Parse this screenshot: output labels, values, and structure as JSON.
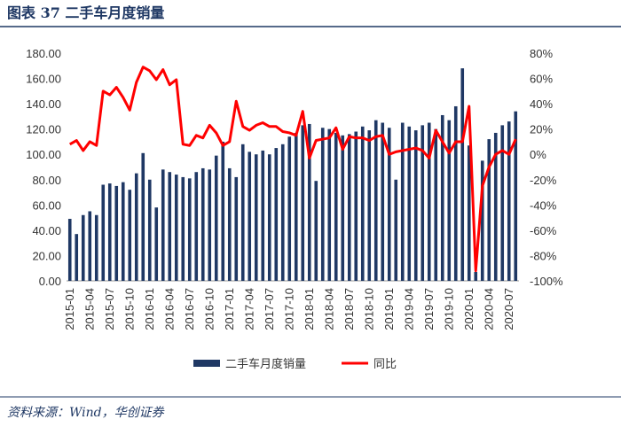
{
  "chart_data": {
    "type": "bar_line",
    "title": "图表 37 二手车月度销量",
    "source": "资料来源：Wind，华创证券",
    "categories": [
      "2015-01",
      null,
      null,
      "2015-04",
      null,
      null,
      "2015-07",
      null,
      null,
      "2015-10",
      null,
      null,
      "2016-01",
      null,
      null,
      "2016-04",
      null,
      null,
      "2016-07",
      null,
      null,
      "2016-10",
      null,
      null,
      "2017-01",
      null,
      null,
      "2017-04",
      null,
      null,
      "2017-07",
      null,
      null,
      "2017-10",
      null,
      null,
      "2018-01",
      null,
      null,
      "2018-04",
      null,
      null,
      "2018-07",
      null,
      null,
      "2018-10",
      null,
      null,
      "2019-01",
      null,
      null,
      "2019-04",
      null,
      null,
      "2019-07",
      null,
      null,
      "2019-10",
      null,
      null,
      "2020-01",
      null,
      null,
      "2020-04",
      null,
      null,
      "2020-07",
      null
    ],
    "series": [
      {
        "name": "二手车月度销量",
        "color": "#1f3864",
        "kind": "bar",
        "values": [
          49,
          37,
          52,
          55,
          52,
          76,
          77,
          75,
          78,
          72,
          85,
          101,
          80,
          58,
          88,
          86,
          84,
          82,
          81,
          86,
          89,
          88,
          99,
          110,
          89,
          82,
          108,
          102,
          100,
          103,
          100,
          105,
          108,
          114,
          117,
          123,
          124,
          79,
          121,
          120,
          117,
          115,
          116,
          118,
          122,
          119,
          127,
          125,
          121,
          80,
          125,
          122,
          119,
          123,
          125,
          120,
          131,
          127,
          138,
          168,
          107,
          7,
          95,
          112,
          117,
          123,
          126,
          134
        ]
      },
      {
        "name": "同比",
        "color": "#ff0000",
        "kind": "line",
        "axis": "y2",
        "values": [
          8,
          11,
          3,
          10,
          7,
          50,
          47,
          53,
          45,
          35,
          57,
          69,
          66,
          59,
          67,
          55,
          59,
          8,
          7,
          15,
          13,
          23,
          17,
          7,
          10,
          42,
          22,
          19,
          23,
          25,
          22,
          22,
          18,
          17,
          15,
          34,
          -3,
          11,
          12,
          13,
          21,
          4,
          14,
          13,
          13,
          11,
          14,
          15,
          0,
          2,
          3,
          4,
          5,
          3,
          -3,
          19,
          10,
          1,
          10,
          10,
          38,
          -92,
          -25,
          -10,
          0,
          3,
          0,
          12
        ]
      }
    ],
    "ylim": [
      0,
      180
    ],
    "yticks": [
      {
        "value": 0,
        "label": "0.00"
      },
      {
        "value": 20,
        "label": "20.00"
      },
      {
        "value": 40,
        "label": "40.00"
      },
      {
        "value": 60,
        "label": "60.00"
      },
      {
        "value": 80,
        "label": "80.00"
      },
      {
        "value": 100,
        "label": "100.00"
      },
      {
        "value": 120,
        "label": "120.00"
      },
      {
        "value": 140,
        "label": "140.00"
      },
      {
        "value": 160,
        "label": "160.00"
      },
      {
        "value": 180,
        "label": "180.00"
      }
    ],
    "y2lim": [
      -100,
      80
    ],
    "y2ticks": [
      {
        "value": -100,
        "label": "-100%"
      },
      {
        "value": -80,
        "label": "-80%"
      },
      {
        "value": -60,
        "label": "-60%"
      },
      {
        "value": -40,
        "label": "-40%"
      },
      {
        "value": -20,
        "label": "-20%"
      },
      {
        "value": 0,
        "label": "0%"
      },
      {
        "value": 20,
        "label": "20%"
      },
      {
        "value": 40,
        "label": "40%"
      },
      {
        "value": 60,
        "label": "60%"
      },
      {
        "value": 80,
        "label": "80%"
      }
    ],
    "legend": "bottom"
  }
}
